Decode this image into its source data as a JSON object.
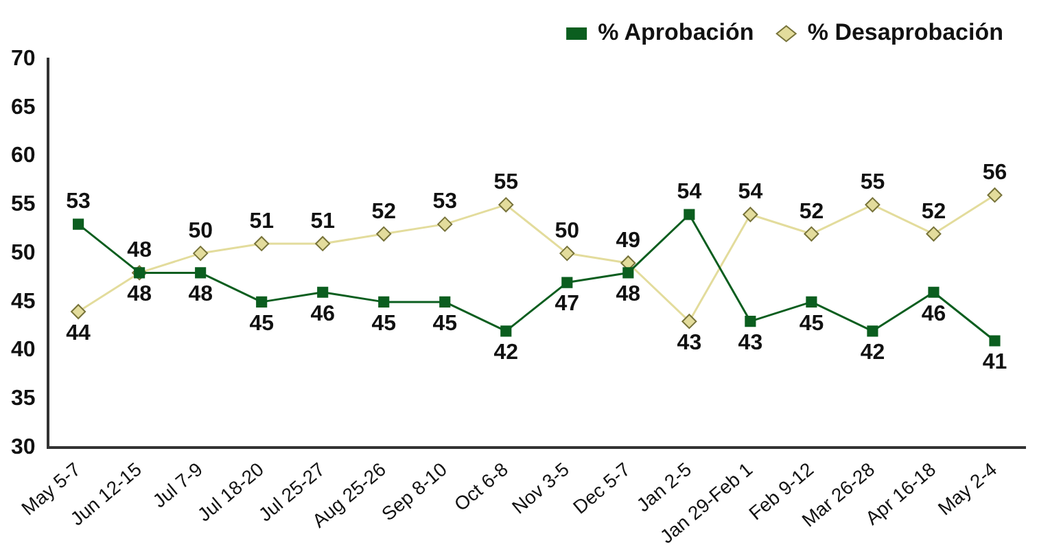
{
  "chart_data": {
    "type": "line",
    "categories": [
      "May 5-7",
      "Jun 12-15",
      "Jul 7-9",
      "Jul 18-20",
      "Jul 25-27",
      "Aug 25-26",
      "Sep 8-10",
      "Oct 6-8",
      "Nov 3-5",
      "Dec 5-7",
      "Jan 2-5",
      "Jan 29-Feb 1",
      "Feb 9-12",
      "Mar 26-28",
      "Apr 16-18",
      "May 2-4"
    ],
    "series": [
      {
        "name": "% Aprobación",
        "color": "#0b5e1f",
        "marker": "square",
        "values": [
          53,
          48,
          48,
          45,
          46,
          45,
          45,
          42,
          47,
          48,
          54,
          43,
          45,
          42,
          46,
          41
        ]
      },
      {
        "name": "% Desaprobación",
        "color": "#e3dc9c",
        "marker": "diamond",
        "values": [
          44,
          48,
          50,
          51,
          51,
          52,
          53,
          55,
          50,
          49,
          43,
          54,
          52,
          55,
          52,
          56
        ]
      }
    ],
    "ylim": [
      30,
      70
    ],
    "yticks": [
      30,
      35,
      40,
      45,
      50,
      55,
      60,
      65,
      70
    ],
    "grid": false,
    "legend": "top right",
    "data_labels": true,
    "line_style": "solid"
  }
}
